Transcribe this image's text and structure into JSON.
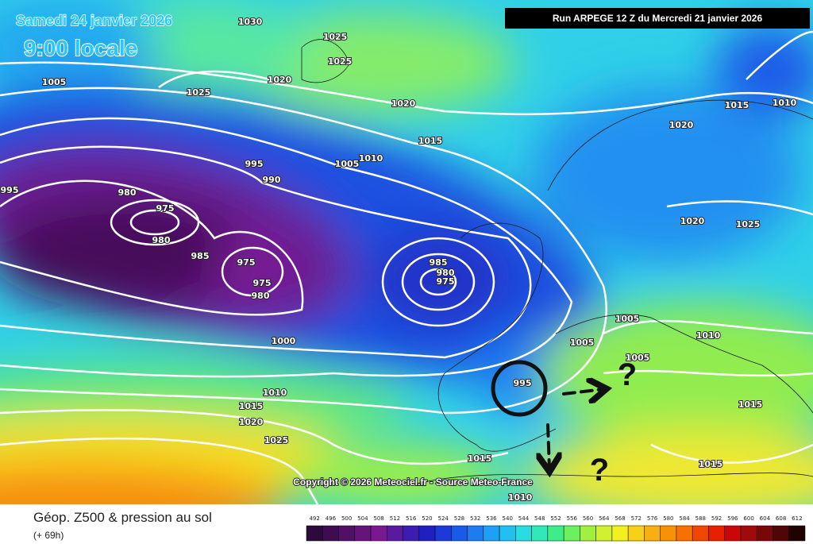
{
  "header": {
    "valid_date": "Samedi 24 janvier 2026",
    "valid_time": "9:00 locale",
    "run": "Run ARPEGE 12 Z du Mercredi 21 janvier 2026"
  },
  "copyright": "Copyright © 2026 Meteociel.fr - Source Meteo-France",
  "footer": {
    "title": "Géop. Z500 & pression au sol",
    "lead": "(+ 69h)"
  },
  "legend": {
    "levels": [
      492,
      496,
      500,
      504,
      508,
      512,
      516,
      520,
      524,
      528,
      532,
      536,
      540,
      544,
      548,
      552,
      556,
      560,
      564,
      568,
      572,
      576,
      580,
      584,
      588,
      592,
      596,
      600,
      604,
      608,
      612
    ],
    "colors": [
      "#2d0a3c",
      "#3e0c50",
      "#520f66",
      "#66137c",
      "#7a1890",
      "#5a1aa0",
      "#3d1cb0",
      "#2020c0",
      "#1c3ad8",
      "#1a5ae8",
      "#1c7cf0",
      "#1ea0f4",
      "#22c0f0",
      "#28dce0",
      "#30e8b8",
      "#40ec88",
      "#6cf060",
      "#a0f040",
      "#d0f030",
      "#f4f020",
      "#f8d018",
      "#f8b010",
      "#f89008",
      "#f87000",
      "#f04800",
      "#e82000",
      "#c80808",
      "#a00a0a",
      "#780808",
      "#500606",
      "#200202"
    ]
  },
  "isobars": {
    "labels": [
      "995",
      "980",
      "975",
      "980",
      "985",
      "975",
      "975",
      "980",
      "985",
      "980",
      "975",
      "1000",
      "995",
      "990",
      "1005",
      "1010",
      "1015",
      "1020",
      "1005",
      "1025",
      "1020",
      "1025",
      "1025",
      "1030",
      "1015",
      "1010",
      "1020",
      "1020",
      "1025",
      "1005",
      "1005",
      "1005",
      "1010",
      "995",
      "1010",
      "1015",
      "1020",
      "1025",
      "1015",
      "1010",
      "1015",
      "1015"
    ]
  },
  "annotations": [
    "?",
    "?"
  ]
}
